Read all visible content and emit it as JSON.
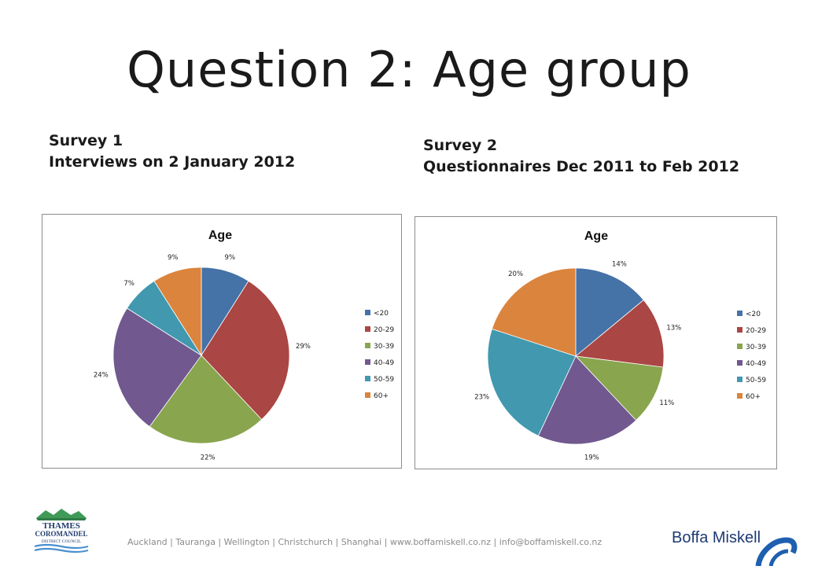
{
  "slide": {
    "title": "Question 2: Age group",
    "survey1": {
      "line1": "Survey 1",
      "line2": "Interviews on 2 January 2012"
    },
    "survey2": {
      "line1": "Survey 2",
      "line2": "Questionnaires Dec 2011 to Feb 2012"
    },
    "footer": "Auckland  |  Tauranga  |  Wellington  |  Christchurch  |  Shanghai  |  www.boffamiskell.co.nz  |  info@boffamiskell.co.nz",
    "logo_left": {
      "line1": "THAMES",
      "line2": "COROMANDEL",
      "line3": "DISTRICT COUNCIL"
    },
    "logo_right": "Boffa Miskell"
  },
  "chart_data": [
    {
      "type": "pie",
      "title": "Age",
      "categories": [
        "<20",
        "20-29",
        "30-39",
        "40-49",
        "50-59",
        "60+"
      ],
      "values": [
        9,
        29,
        22,
        24,
        7,
        9
      ],
      "labels": [
        "9%",
        "29%",
        "22%",
        "24%",
        "7%",
        "9%"
      ],
      "colors": [
        "#4572A7",
        "#AA4643",
        "#89A54E",
        "#71588F",
        "#4198AF",
        "#DB843D"
      ],
      "legend": "right"
    },
    {
      "type": "pie",
      "title": "Age",
      "categories": [
        "<20",
        "20-29",
        "30-39",
        "40-49",
        "50-59",
        "60+"
      ],
      "values": [
        14,
        13,
        11,
        19,
        23,
        20
      ],
      "labels": [
        "14%",
        "13%",
        "11%",
        "19%",
        "23%",
        "20%"
      ],
      "colors": [
        "#4572A7",
        "#AA4643",
        "#89A54E",
        "#71588F",
        "#4198AF",
        "#DB843D"
      ],
      "legend": "right"
    }
  ]
}
